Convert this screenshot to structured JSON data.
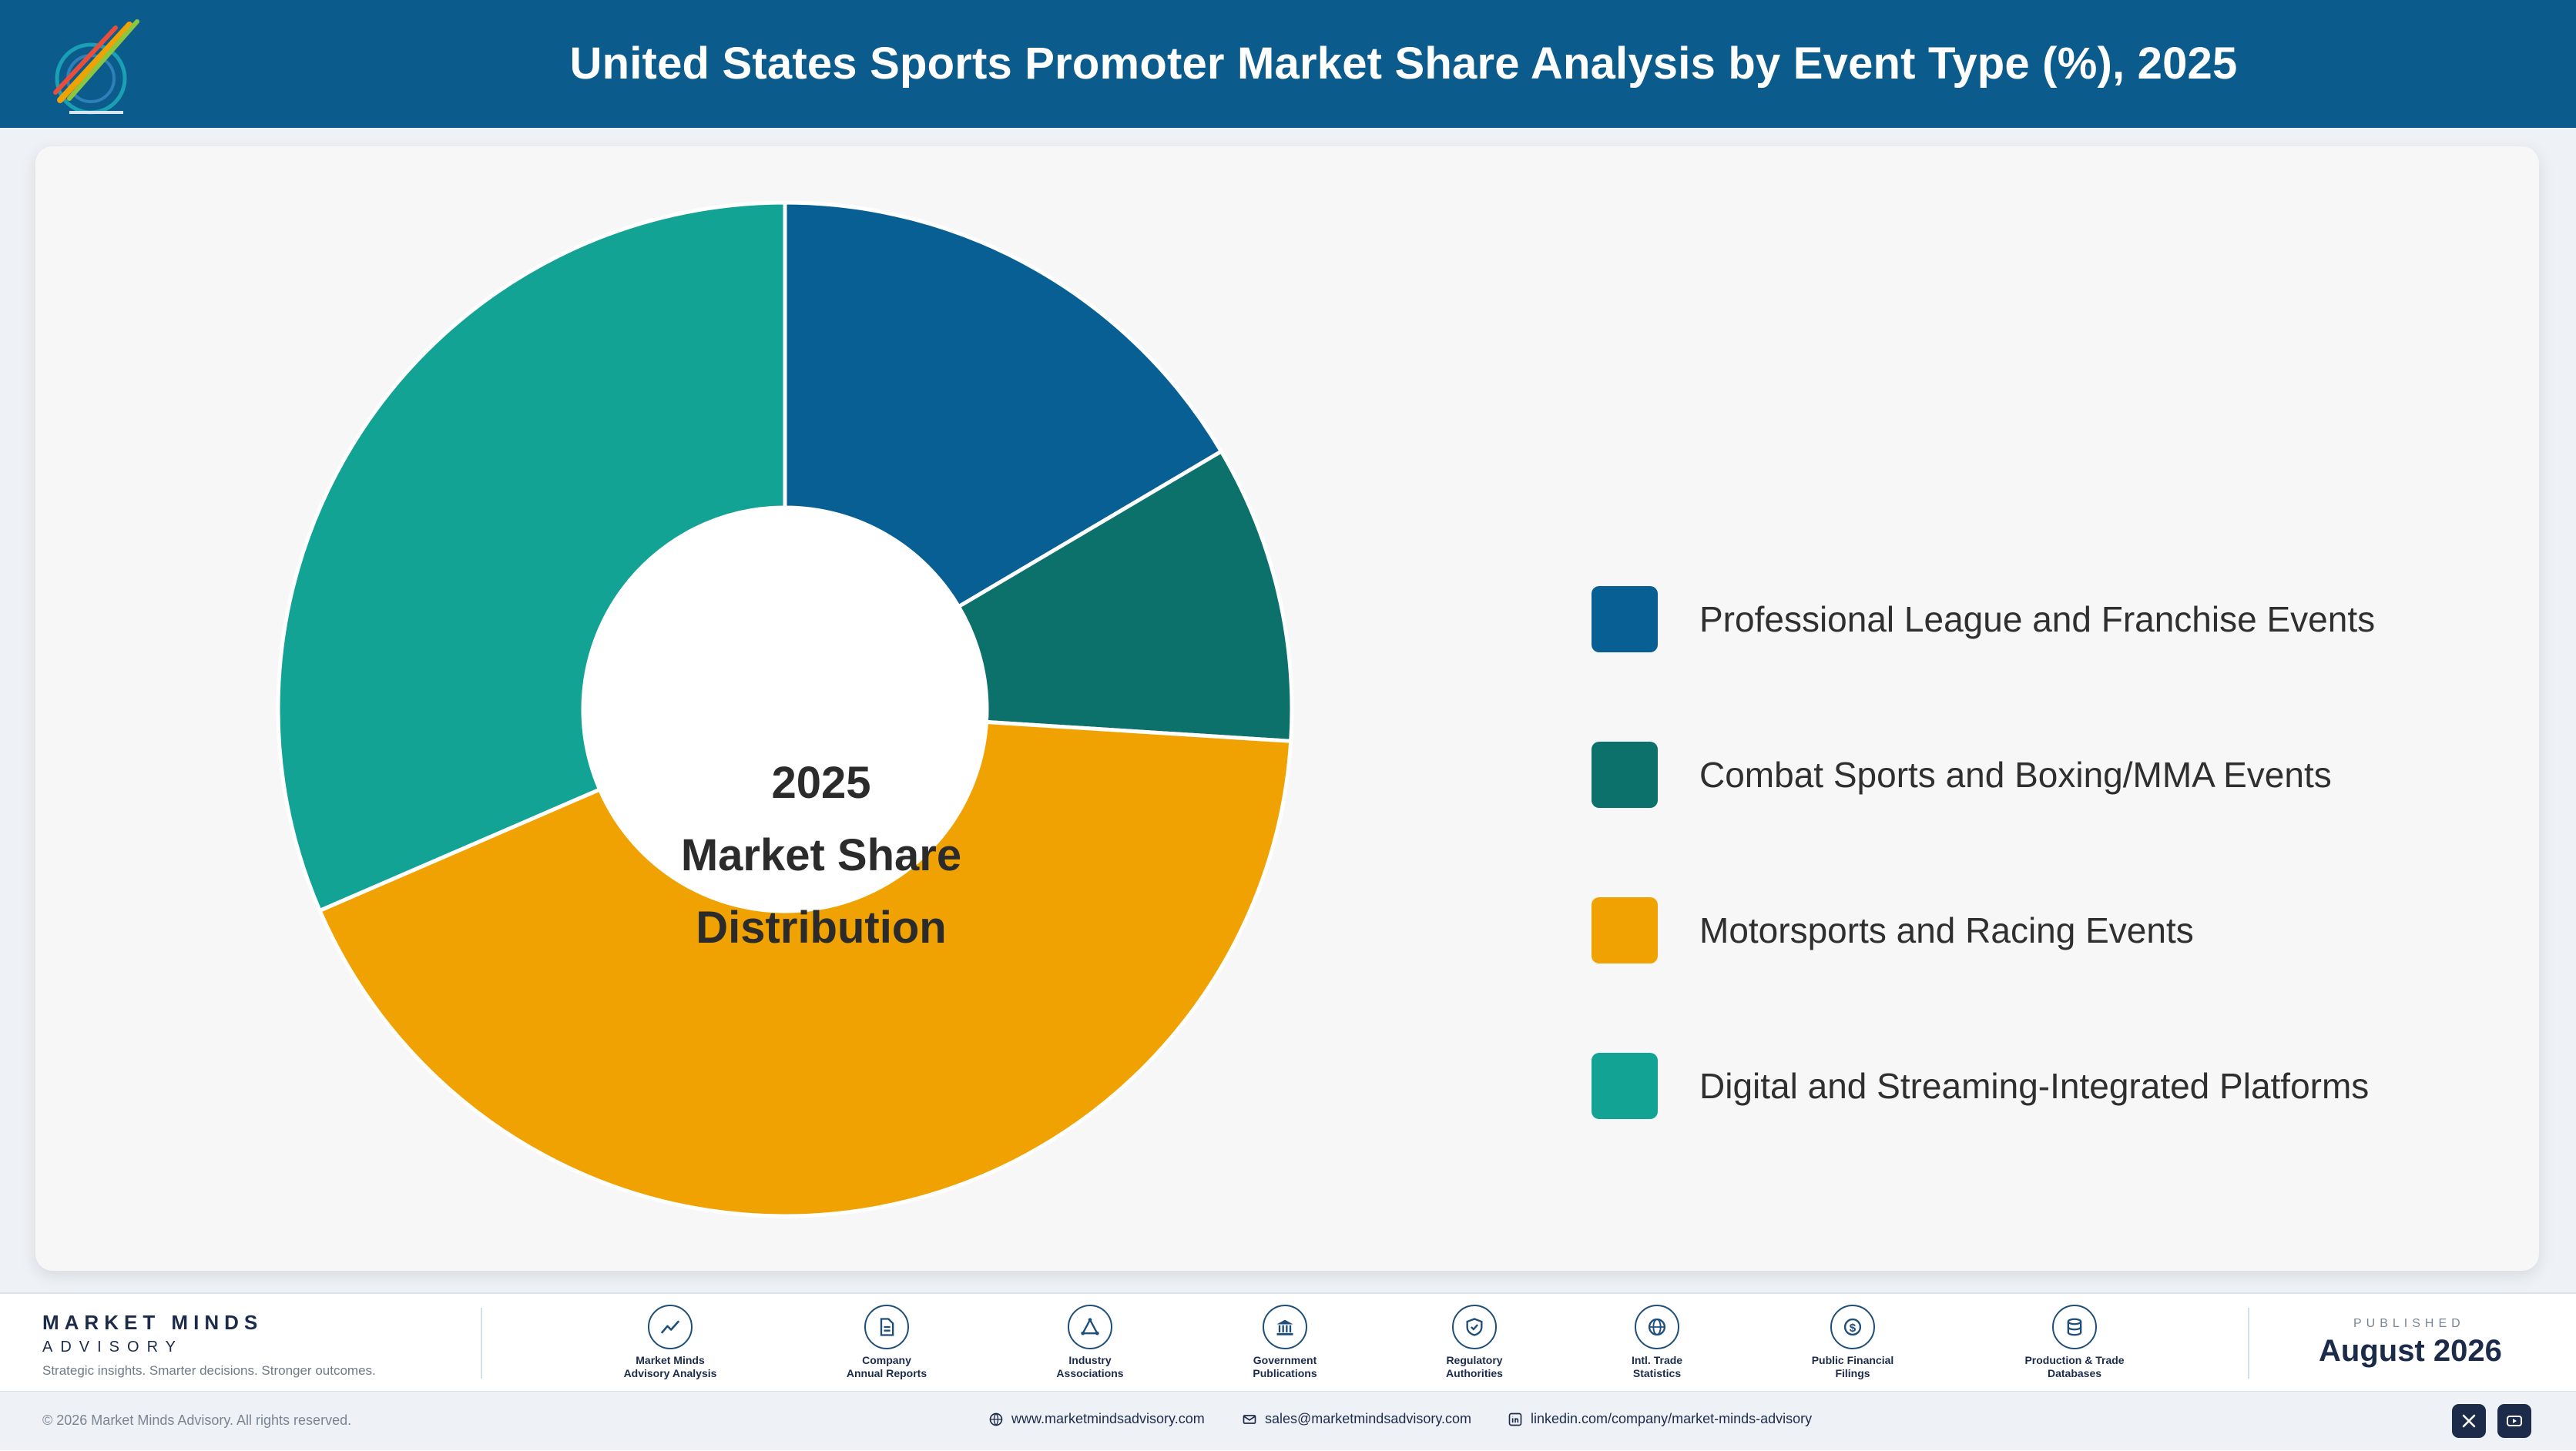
{
  "header": {
    "title": "United States Sports Promoter Market Share Analysis by Event Type (%), 2025"
  },
  "center_label": {
    "line1": "2025",
    "line2": "Market Share",
    "line3": "Distribution"
  },
  "chart_data": {
    "type": "pie",
    "title": "United States Sports Promoter Market Share Analysis by Event Type (%), 2025",
    "donut": true,
    "legend_position": "right",
    "categories": [
      "Professional League and Franchise Events",
      "Combat Sports and Boxing/MMA Events",
      "Motorsports and Racing Events",
      "Digital and Streaming-Integrated Platforms"
    ],
    "values": [
      16.5,
      9.5,
      42.5,
      31.5
    ],
    "colors": [
      "#085f94",
      "#0c706b",
      "#f0a202",
      "#12a394"
    ]
  },
  "footer": {
    "brand_name": "MARKET MINDS",
    "brand_sub": "ADVISORY",
    "tagline": "Strategic insights. Smarter decisions. Stronger outcomes.",
    "sources": [
      {
        "line1": "Market Minds",
        "line2": "Advisory Analysis",
        "icon": "trend-chart-icon"
      },
      {
        "line1": "Company",
        "line2": "Annual Reports",
        "icon": "document-icon"
      },
      {
        "line1": "Industry",
        "line2": "Associations",
        "icon": "network-icon"
      },
      {
        "line1": "Government",
        "line2": "Publications",
        "icon": "government-building-icon"
      },
      {
        "line1": "Regulatory",
        "line2": "Authorities",
        "icon": "shield-check-icon"
      },
      {
        "line1": "Intl. Trade",
        "line2": "Statistics",
        "icon": "globe-icon"
      },
      {
        "line1": "Public Financial",
        "line2": "Filings",
        "icon": "dollar-coin-icon"
      },
      {
        "line1": "Production & Trade",
        "line2": "Databases",
        "icon": "database-icon"
      }
    ],
    "published_label": "PUBLISHED",
    "published_date": "August 2026",
    "copyright": "© 2026 Market Minds Advisory. All rights reserved.",
    "website": "www.marketmindsadvisory.com",
    "email": "sales@marketmindsadvisory.com",
    "linkedin": "linkedin.com/company/market-minds-advisory",
    "social_icons": [
      "x-icon",
      "youtube-icon"
    ]
  }
}
